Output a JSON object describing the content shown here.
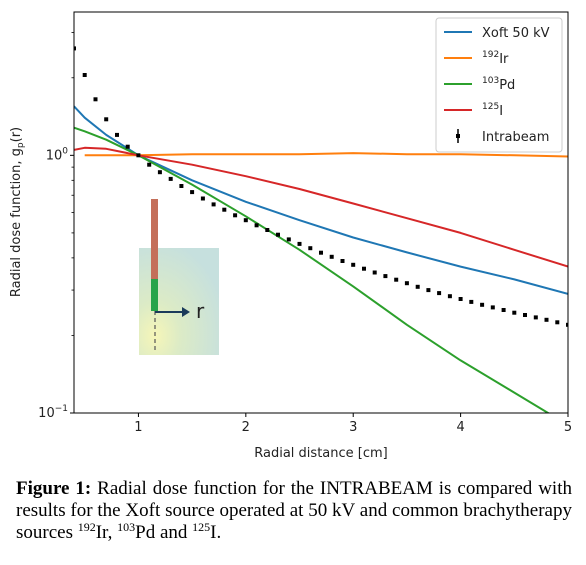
{
  "chart_data": {
    "type": "line",
    "xlabel": "Radial distance [cm]",
    "ylabel": "Radial dose function, g",
    "ylabel_sub": "p",
    "ylabel_tail": "(r)",
    "xlim": [
      0.4,
      5
    ],
    "ylim": [
      0.1,
      3.6
    ],
    "yscale": "log",
    "grid": false,
    "legend_placement": "top-right",
    "xticks": [
      1,
      2,
      3,
      4,
      5
    ],
    "yticks": [
      {
        "value": 1,
        "base": "10",
        "exp": "0"
      },
      {
        "value": 0.1,
        "base": "10",
        "exp": "−1"
      }
    ],
    "series": [
      {
        "name": "Xoft 50 kV",
        "style": "line",
        "color": "#1f77b4",
        "x": [
          0.4,
          0.5,
          0.7,
          1.0,
          1.5,
          2.0,
          2.5,
          3.0,
          3.5,
          4.0,
          4.5,
          5.0
        ],
        "y": [
          1.55,
          1.4,
          1.2,
          1.0,
          0.8,
          0.66,
          0.56,
          0.48,
          0.42,
          0.37,
          0.33,
          0.29
        ]
      },
      {
        "name": "Ir",
        "name_sup": "192",
        "style": "line",
        "color": "#ff7f0e",
        "x": [
          0.5,
          1.0,
          1.5,
          2.0,
          2.5,
          3.0,
          3.5,
          4.0,
          4.5,
          5.0
        ],
        "y": [
          1.0,
          1.0,
          1.01,
          1.01,
          1.01,
          1.02,
          1.01,
          1.01,
          1.0,
          0.99
        ]
      },
      {
        "name": "Pd",
        "name_sup": "103",
        "style": "line",
        "color": "#2ca02c",
        "x": [
          0.4,
          0.5,
          0.7,
          1.0,
          1.5,
          2.0,
          2.5,
          3.0,
          3.5,
          4.0,
          4.5,
          4.85
        ],
        "y": [
          1.28,
          1.24,
          1.15,
          1.0,
          0.77,
          0.58,
          0.43,
          0.31,
          0.22,
          0.16,
          0.12,
          0.098
        ]
      },
      {
        "name": "I",
        "name_sup": "125",
        "style": "line",
        "color": "#d62728",
        "x": [
          0.4,
          0.5,
          0.7,
          1.0,
          1.5,
          2.0,
          2.5,
          3.0,
          3.5,
          4.0,
          4.5,
          5.0
        ],
        "y": [
          1.05,
          1.07,
          1.06,
          1.0,
          0.92,
          0.83,
          0.74,
          0.65,
          0.57,
          0.5,
          0.43,
          0.37
        ]
      },
      {
        "name": "Intrabeam",
        "style": "points",
        "color": "#000000",
        "x": [
          0.4,
          0.5,
          0.6,
          0.7,
          0.8,
          0.9,
          1.0,
          1.1,
          1.2,
          1.3,
          1.4,
          1.5,
          1.6,
          1.7,
          1.8,
          1.9,
          2.0,
          2.1,
          2.2,
          2.3,
          2.4,
          2.5,
          2.6,
          2.7,
          2.8,
          2.9,
          3.0,
          3.1,
          3.2,
          3.3,
          3.4,
          3.5,
          3.6,
          3.7,
          3.8,
          3.9,
          4.0,
          4.1,
          4.2,
          4.3,
          4.4,
          4.5,
          4.6,
          4.7,
          4.8,
          4.9,
          5.0
        ],
        "y": [
          2.6,
          2.05,
          1.65,
          1.38,
          1.2,
          1.08,
          1.0,
          0.92,
          0.86,
          0.81,
          0.76,
          0.72,
          0.68,
          0.645,
          0.615,
          0.585,
          0.56,
          0.535,
          0.513,
          0.492,
          0.472,
          0.453,
          0.436,
          0.419,
          0.404,
          0.389,
          0.376,
          0.363,
          0.351,
          0.34,
          0.329,
          0.319,
          0.309,
          0.3,
          0.292,
          0.284,
          0.277,
          0.27,
          0.263,
          0.257,
          0.251,
          0.245,
          0.24,
          0.235,
          0.23,
          0.225,
          0.22
        ]
      }
    ],
    "inset": {
      "label": "r"
    }
  },
  "caption": {
    "label": "Figure 1:",
    "text1": "Radial dose function for the INTRABEAM is compared with results for the Xoft source operated at 50 kV and common brachytherapy sources",
    "sup1": "192",
    "el1": "Ir,",
    "sup2": "103",
    "el2": "Pd and",
    "sup3": "125",
    "el3": "I."
  }
}
